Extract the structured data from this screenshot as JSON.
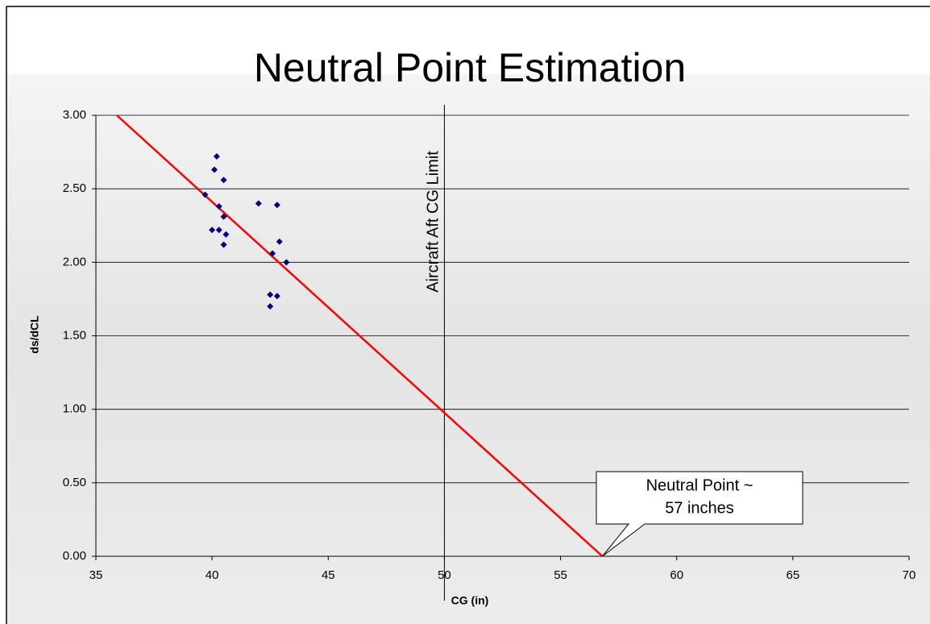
{
  "chart_data": {
    "type": "scatter",
    "title": "Neutral Point Estimation",
    "x_label": "CG (in)",
    "y_label": "ds/dCL",
    "x": [
      39.7,
      40.2,
      40.1,
      40.5,
      40.3,
      40.5,
      40.0,
      40.3,
      40.6,
      40.5,
      42.0,
      42.8,
      42.9,
      42.6,
      43.2,
      42.5,
      42.8,
      42.5
    ],
    "values": [
      2.46,
      2.72,
      2.63,
      2.56,
      2.38,
      2.31,
      2.22,
      2.22,
      2.19,
      2.12,
      2.4,
      2.39,
      2.14,
      2.06,
      2.0,
      1.78,
      1.77,
      1.7
    ],
    "color": "#000080",
    "fit_line": {
      "x": [
        35.9,
        56.8
      ],
      "values": [
        3.0,
        0.0
      ],
      "color": "#ff0000"
    },
    "vline": {
      "x": 50,
      "label": "Aircraft Aft CG Limit"
    },
    "annotation": {
      "lines": [
        "Neutral Point ~",
        "57 inches"
      ]
    },
    "xlim": [
      35,
      70
    ],
    "ylim": [
      0,
      3
    ],
    "xticks": [
      35,
      40,
      45,
      50,
      55,
      60,
      65,
      70
    ],
    "yticks": [
      {
        "value": 0,
        "label": "0.00"
      },
      {
        "value": 0.5,
        "label": "0.50"
      },
      {
        "value": 1,
        "label": "1.00"
      },
      {
        "value": 1.5,
        "label": "1.50"
      },
      {
        "value": 2,
        "label": "2.00"
      },
      {
        "value": 2.5,
        "label": "2.50"
      },
      {
        "value": 3,
        "label": "3.00"
      }
    ],
    "grid": true
  }
}
